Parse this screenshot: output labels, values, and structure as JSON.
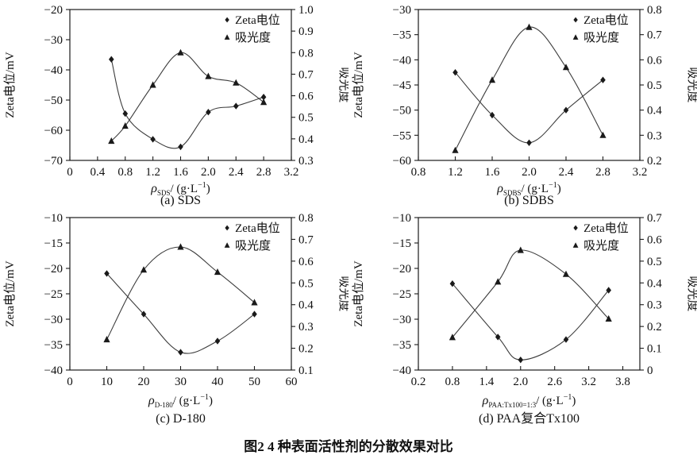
{
  "figure": {
    "caption": "图2  4 种表面活性剂的分散效果对比"
  },
  "chart_data": [
    {
      "id": "a",
      "type": "line",
      "title": "(a) SDS",
      "xlabel": {
        "prefix": "ρ",
        "sub": "SDS",
        "mid": "/ (g·L",
        "sup": "-1",
        "end": ")"
      },
      "xlim": [
        0,
        3.2
      ],
      "x_tick_labels": [
        "0",
        "0.4",
        "0.8",
        "1.2",
        "1.6",
        "2.0",
        "2.4",
        "2.8",
        "3.2"
      ],
      "left_axis": {
        "label": "Zeta电位/mV",
        "lim": [
          -70,
          -20
        ],
        "tick_labels": [
          "-70",
          "-60",
          "-50",
          "-40",
          "-30",
          "-20"
        ]
      },
      "right_axis": {
        "label": "吸光度",
        "lim": [
          0.3,
          1.0
        ],
        "tick_labels": [
          "0.3",
          "0.4",
          "0.5",
          "0.6",
          "0.7",
          "0.8",
          "0.9",
          "1.0"
        ]
      },
      "legend_position": "top-right-inside",
      "grid": false,
      "series": [
        {
          "name": "Zeta电位",
          "axis": "left",
          "marker": "diamond",
          "x": [
            0.6,
            0.8,
            1.2,
            1.6,
            2.0,
            2.4,
            2.8
          ],
          "y": [
            -36.5,
            -54.5,
            -63,
            -65.5,
            -54,
            -52,
            -49
          ]
        },
        {
          "name": "吸光度",
          "axis": "right",
          "marker": "triangle",
          "x": [
            0.6,
            0.8,
            1.2,
            1.6,
            2.0,
            2.4,
            2.8
          ],
          "y": [
            0.39,
            0.46,
            0.65,
            0.8,
            0.69,
            0.66,
            0.57
          ]
        }
      ]
    },
    {
      "id": "b",
      "type": "line",
      "title": "(b) SDBS",
      "xlabel": {
        "prefix": "ρ",
        "sub": "SDBS",
        "mid": "/ (g·L",
        "sup": "-1",
        "end": ")"
      },
      "xlim": [
        0.8,
        3.2
      ],
      "x_tick_labels": [
        "0.8",
        "1.2",
        "1.6",
        "2.0",
        "2.4",
        "2.8",
        "3.2"
      ],
      "left_axis": {
        "label": "Zeta电位/mV",
        "lim": [
          -60,
          -30
        ],
        "tick_labels": [
          "-60",
          "-55",
          "-50",
          "-45",
          "-40",
          "-35",
          "-30"
        ]
      },
      "right_axis": {
        "label": "吸光度",
        "lim": [
          0.2,
          0.8
        ],
        "tick_labels": [
          "0.2",
          "0.3",
          "0.4",
          "0.5",
          "0.6",
          "0.7",
          "0.8"
        ]
      },
      "legend_position": "top-right-inside",
      "grid": false,
      "series": [
        {
          "name": "Zeta电位",
          "axis": "left",
          "marker": "diamond",
          "x": [
            1.2,
            1.6,
            2.0,
            2.4,
            2.8
          ],
          "y": [
            -42.5,
            -51,
            -56.5,
            -50,
            -44
          ]
        },
        {
          "name": "吸光度",
          "axis": "right",
          "marker": "triangle",
          "x": [
            1.2,
            1.6,
            2.0,
            2.4,
            2.8
          ],
          "y": [
            0.24,
            0.52,
            0.73,
            0.57,
            0.3
          ]
        }
      ]
    },
    {
      "id": "c",
      "type": "line",
      "title": "(c) D-180",
      "xlabel": {
        "prefix": "ρ",
        "sub": "D-180",
        "mid": "/ (g·L",
        "sup": "-1",
        "end": ")"
      },
      "xlim": [
        0,
        60
      ],
      "x_tick_labels": [
        "0",
        "10",
        "20",
        "30",
        "40",
        "50",
        "60"
      ],
      "left_axis": {
        "label": "Zeta电位/mV",
        "lim": [
          -40,
          -10
        ],
        "tick_labels": [
          "-40",
          "-35",
          "-30",
          "-25",
          "-20",
          "-15",
          "-10"
        ]
      },
      "right_axis": {
        "label": "吸光度",
        "lim": [
          0.1,
          0.8
        ],
        "tick_labels": [
          "0.1",
          "0.2",
          "0.3",
          "0.4",
          "0.5",
          "0.6",
          "0.7",
          "0.8"
        ]
      },
      "legend_position": "top-right-inside",
      "grid": false,
      "series": [
        {
          "name": "Zeta电位",
          "axis": "left",
          "marker": "diamond",
          "x": [
            10,
            20,
            30,
            40,
            50
          ],
          "y": [
            -21,
            -29,
            -36.5,
            -34.3,
            -29
          ]
        },
        {
          "name": "吸光度",
          "axis": "right",
          "marker": "triangle",
          "x": [
            10,
            20,
            30,
            40,
            50
          ],
          "y": [
            0.24,
            0.56,
            0.665,
            0.55,
            0.41
          ]
        }
      ]
    },
    {
      "id": "d",
      "type": "line",
      "title": "(d) PAA复合Tx100",
      "xlabel": {
        "prefix": "ρ",
        "sub": "PAA:Tx100=1:3",
        "mid": "/ (g·L",
        "sup": "-1",
        "end": ")"
      },
      "xlim": [
        0.2,
        4.1
      ],
      "x_tick_labels": [
        "0.2",
        "0.8",
        "1.4",
        "2.0",
        "2.6",
        "3.2",
        "3.8"
      ],
      "left_axis": {
        "label": "Zeta电位/mV",
        "lim": [
          -40,
          -10
        ],
        "tick_labels": [
          "-40",
          "-35",
          "-30",
          "-25",
          "-20",
          "-15",
          "-10"
        ]
      },
      "right_axis": {
        "label": "吸光度",
        "lim": [
          0,
          0.7
        ],
        "tick_labels": [
          "0",
          "0.1",
          "0.2",
          "0.3",
          "0.4",
          "0.5",
          "0.6",
          "0.7"
        ]
      },
      "legend_position": "top-right-inside",
      "grid": false,
      "series": [
        {
          "name": "Zeta电位",
          "axis": "left",
          "marker": "diamond",
          "x": [
            0.8,
            1.6,
            2.0,
            2.8,
            3.55
          ],
          "y": [
            -23,
            -33.5,
            -38,
            -34,
            -24.3
          ]
        },
        {
          "name": "吸光度",
          "axis": "right",
          "marker": "triangle",
          "x": [
            0.8,
            1.6,
            2.0,
            2.8,
            3.55
          ],
          "y": [
            0.15,
            0.405,
            0.55,
            0.44,
            0.235
          ]
        }
      ]
    }
  ]
}
